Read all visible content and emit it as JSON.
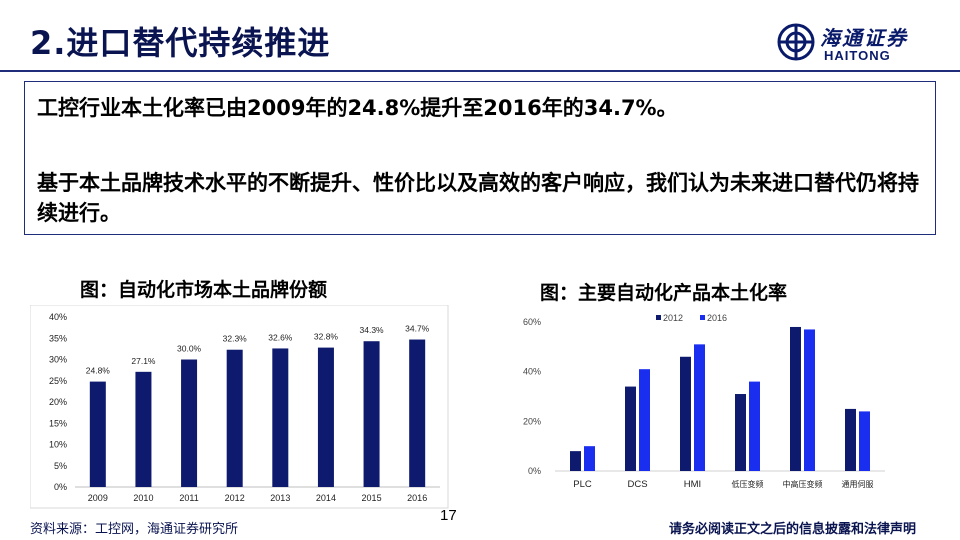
{
  "slide": {
    "title": "2.进口替代持续推进",
    "logo_cn": "海通证券",
    "logo_en": "HAITONG",
    "summary_line1": "工控行业本土化率已由2009年的24.8%提升至2016年的34.7%。",
    "summary_line2": "基于本土品牌技术水平的不断提升、性价比以及高效的客户响应，我们认为未来进口替代仍将持续进行。",
    "source": "资料来源：工控网，海通证券研究所",
    "page_number": "17",
    "disclaimer": "请务必阅读正文之后的信息披露和法律声明"
  },
  "colors": {
    "brand_navy": "#0a1450",
    "bar_dark": "#0d1a6e",
    "bar_bright": "#1a2ef0"
  },
  "chart_data": [
    {
      "type": "bar",
      "title": "图：自动化市场本土品牌份额",
      "categories": [
        "2009",
        "2010",
        "2011",
        "2012",
        "2013",
        "2014",
        "2015",
        "2016"
      ],
      "values": [
        24.8,
        27.1,
        30.0,
        32.3,
        32.6,
        32.8,
        34.3,
        34.7
      ],
      "data_labels": [
        "24.8%",
        "27.1%",
        "30.0%",
        "32.3%",
        "32.6%",
        "32.8%",
        "34.3%",
        "34.7%"
      ],
      "y_ticks": [
        "0%",
        "5%",
        "10%",
        "15%",
        "20%",
        "25%",
        "30%",
        "35%",
        "40%"
      ],
      "ylim": [
        0,
        40
      ],
      "grid": false
    },
    {
      "type": "bar",
      "title": "图：主要自动化产品本土化率",
      "categories": [
        "PLC",
        "DCS",
        "HMI",
        "低压变频",
        "中高压变频",
        "通用伺服"
      ],
      "series": [
        {
          "name": "2012",
          "values": [
            8,
            34,
            46,
            31,
            58,
            25
          ]
        },
        {
          "name": "2016",
          "values": [
            10,
            41,
            51,
            36,
            57,
            24
          ]
        }
      ],
      "y_ticks": [
        "0%",
        "20%",
        "40%",
        "60%"
      ],
      "ylim": [
        0,
        60
      ],
      "legend": "top-center",
      "grid": false
    }
  ]
}
